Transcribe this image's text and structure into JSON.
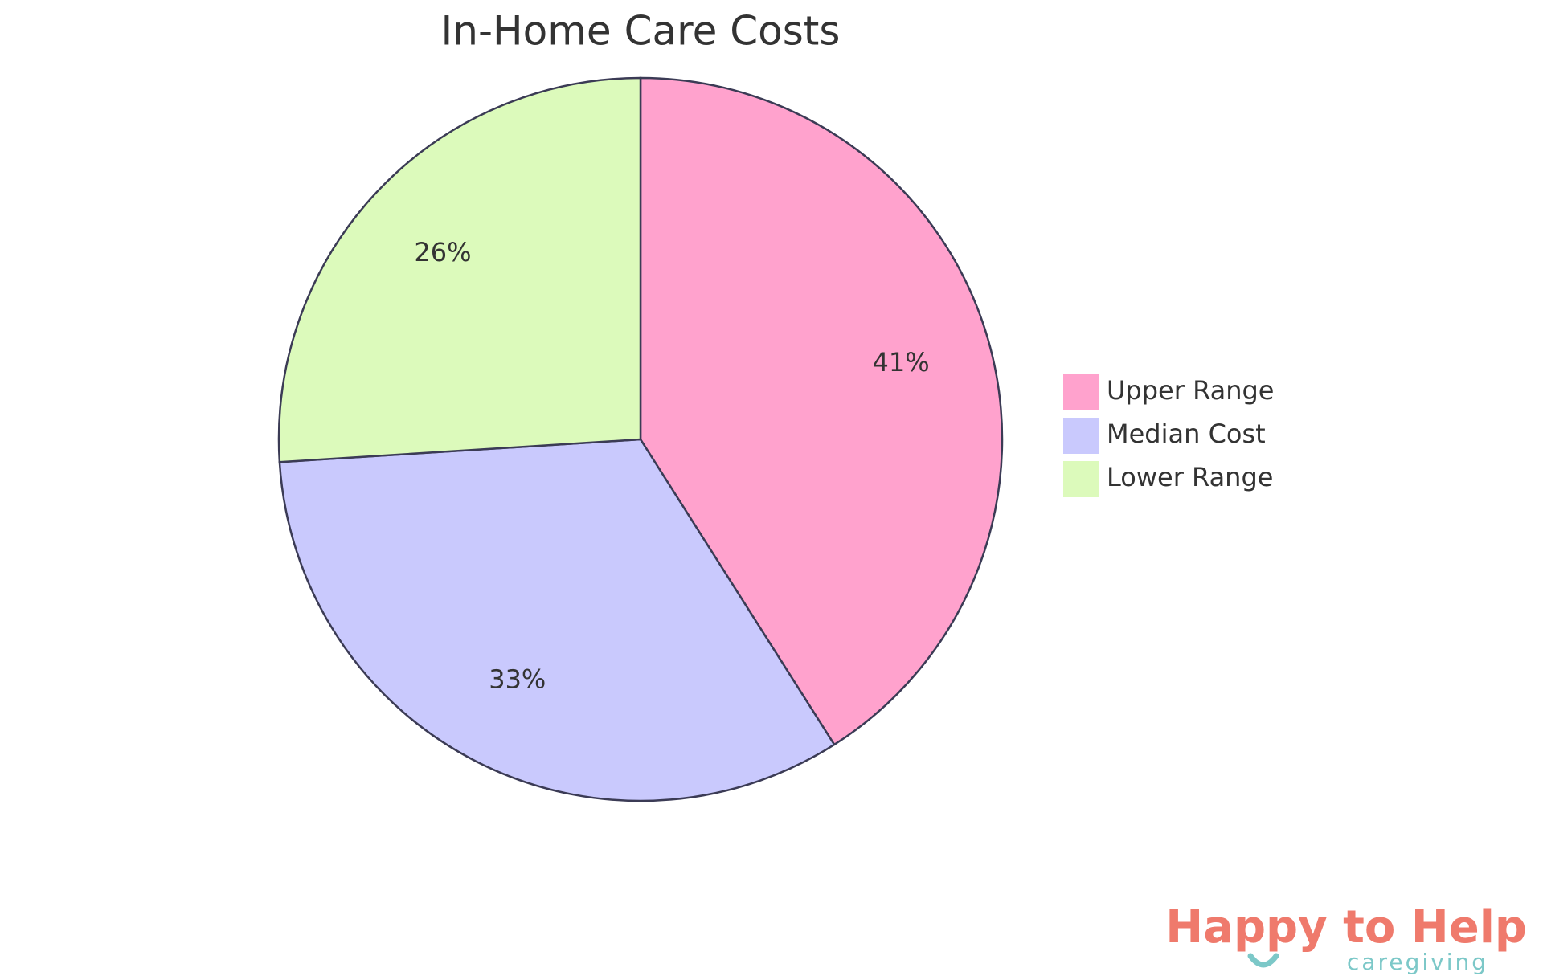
{
  "chart_data": {
    "type": "pie",
    "title": "In-Home Care Costs",
    "categories": [
      "Upper Range",
      "Median Cost",
      "Lower Range"
    ],
    "values": [
      41,
      33,
      26
    ],
    "value_labels": [
      "41%",
      "33%",
      "26%"
    ],
    "colors": [
      "#ffa2cd",
      "#c9c9fd",
      "#dcfabb"
    ],
    "legend": "right"
  },
  "logo": {
    "text": "Happy to Help",
    "tagline": "caregiving"
  }
}
